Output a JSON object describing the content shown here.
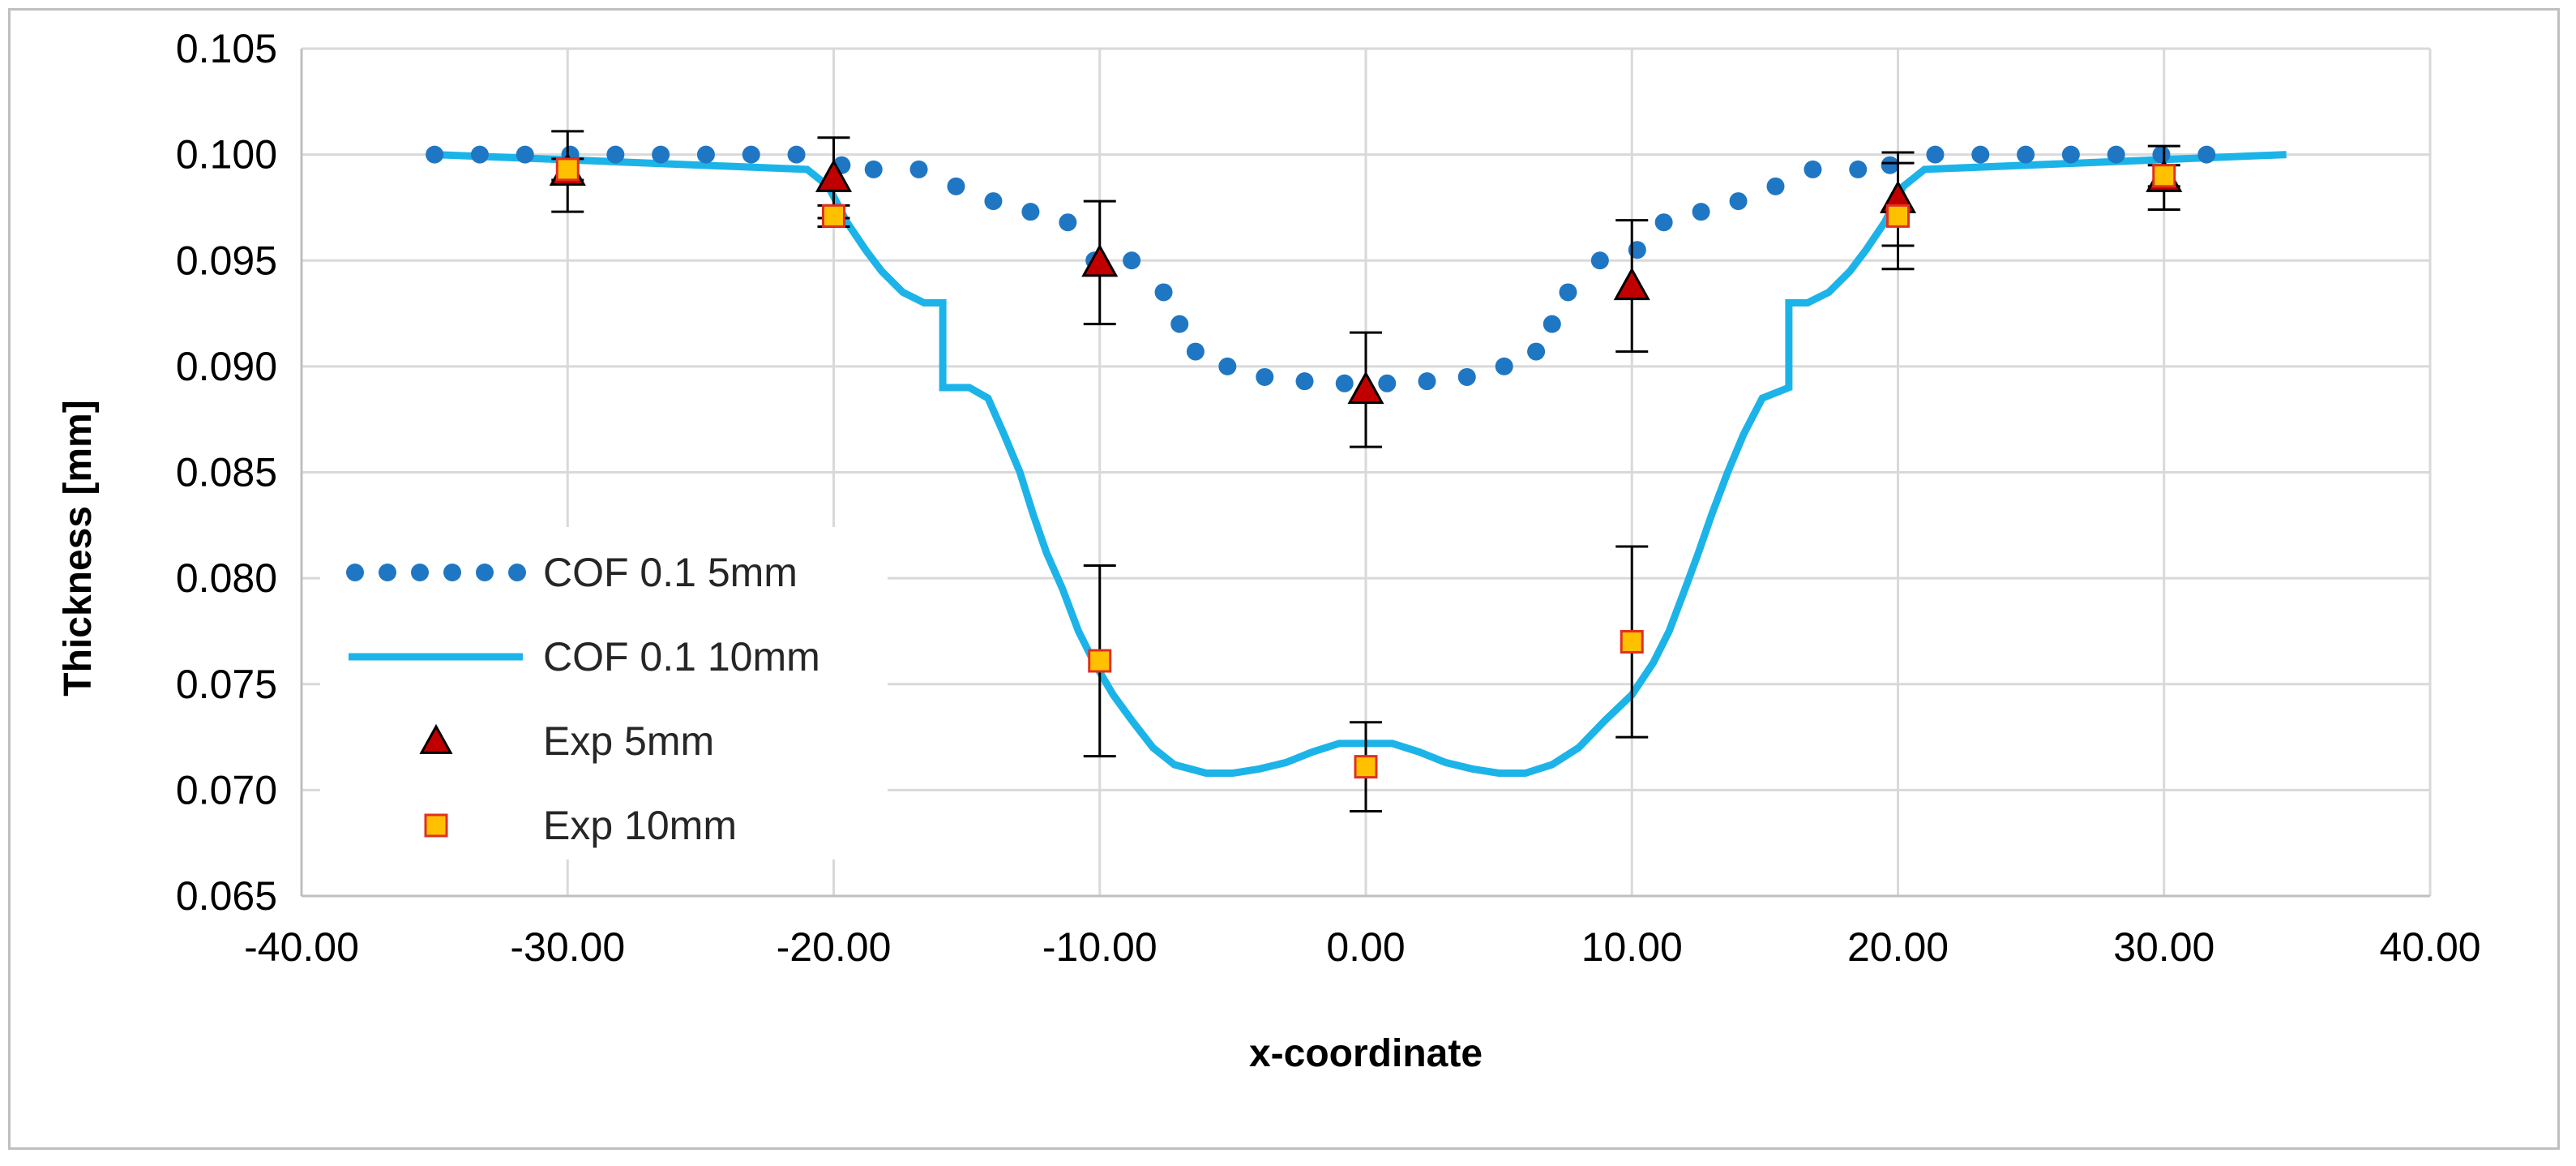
{
  "chart_data": {
    "type": "line",
    "title": "",
    "xlabel": "x-coordinate",
    "ylabel": "Thickness [mm]",
    "xlim": [
      -40,
      40
    ],
    "ylim": [
      0.065,
      0.105
    ],
    "xticks": [
      -40,
      -30,
      -20,
      -10,
      0,
      10,
      20,
      30,
      40
    ],
    "xtick_labels": [
      "-40.00",
      "-30.00",
      "-20.00",
      "-10.00",
      "0.00",
      "10.00",
      "20.00",
      "30.00",
      "40.00"
    ],
    "yticks": [
      0.065,
      0.07,
      0.075,
      0.08,
      0.085,
      0.09,
      0.095,
      0.1,
      0.105
    ],
    "ytick_labels": [
      "0.065",
      "0.070",
      "0.075",
      "0.080",
      "0.085",
      "0.090",
      "0.095",
      "0.100",
      "0.105"
    ],
    "grid": true,
    "legend_position": "left",
    "colors": {
      "cof_5mm": "#1f77c4",
      "cof_10mm": "#1cb4e8",
      "exp_5mm_fill": "#c00000",
      "exp_10mm_fill": "#ffc000",
      "exp_10mm_edge": "#e03020",
      "grid": "#d9d9d9",
      "axis": "#bfbfbf"
    },
    "series": [
      {
        "name": "COF 0.1 5mm",
        "style": "dotted",
        "x": [
          -35,
          -33.3,
          -31.6,
          -29.9,
          -28.2,
          -26.5,
          -24.8,
          -23.1,
          -21.4,
          -19.7,
          -18.5,
          -16.8,
          -15.4,
          -14,
          -12.6,
          -11.2,
          -10.2,
          -8.8,
          -7.6,
          -7,
          -6.4,
          -5.2,
          -3.8,
          -2.3,
          -0.8,
          0.8,
          2.3,
          3.8,
          5.2,
          6.4,
          7,
          7.6,
          8.8,
          10.2,
          11.2,
          12.6,
          14,
          15.4,
          16.8,
          18.5,
          19.7,
          21.4,
          23.1,
          24.8,
          26.5,
          28.2,
          29.9,
          31.6
        ],
        "y": [
          0.1,
          0.1,
          0.1,
          0.1,
          0.1,
          0.1,
          0.1,
          0.1,
          0.1,
          0.0995,
          0.0993,
          0.0993,
          0.0985,
          0.0978,
          0.0973,
          0.0968,
          0.095,
          0.095,
          0.0935,
          0.092,
          0.0907,
          0.09,
          0.0895,
          0.0893,
          0.0892,
          0.0892,
          0.0893,
          0.0895,
          0.09,
          0.0907,
          0.092,
          0.0935,
          0.095,
          0.0955,
          0.0968,
          0.0973,
          0.0978,
          0.0985,
          0.0993,
          0.0993,
          0.0995,
          0.1,
          0.1,
          0.1,
          0.1,
          0.1,
          0.1,
          0.1
        ]
      },
      {
        "name": "COF 0.1 10mm",
        "style": "solid",
        "x": [
          -35,
          -21,
          -20.2,
          -19.5,
          -18.8,
          -18.2,
          -17.4,
          -16.6,
          -15.9,
          -15.9,
          -14.9,
          -14.2,
          -13.6,
          -13,
          -12.5,
          -12,
          -11.4,
          -10.8,
          -10.2,
          -9.5,
          -8.8,
          -8,
          -7.2,
          -6,
          -5,
          -4,
          -3,
          -2,
          -1,
          0,
          1,
          2,
          3,
          4,
          5,
          6,
          7,
          8,
          9,
          10,
          10.8,
          11.4,
          12,
          12.5,
          13,
          13.6,
          14.2,
          14.9,
          15.9,
          15.9,
          16.6,
          17.4,
          18.2,
          18.8,
          19.5,
          20.2,
          21,
          34.6
        ],
        "y": [
          0.1,
          0.0993,
          0.0985,
          0.0968,
          0.0955,
          0.0945,
          0.0935,
          0.093,
          0.093,
          0.089,
          0.089,
          0.0885,
          0.0868,
          0.085,
          0.083,
          0.0812,
          0.0795,
          0.0775,
          0.076,
          0.0745,
          0.0733,
          0.072,
          0.0712,
          0.0708,
          0.0708,
          0.071,
          0.0713,
          0.0718,
          0.0722,
          0.0722,
          0.0722,
          0.0718,
          0.0713,
          0.071,
          0.0708,
          0.0708,
          0.0712,
          0.072,
          0.0733,
          0.0745,
          0.076,
          0.0775,
          0.0795,
          0.0812,
          0.083,
          0.085,
          0.0868,
          0.0885,
          0.089,
          0.093,
          0.093,
          0.0935,
          0.0945,
          0.0955,
          0.0968,
          0.0985,
          0.0993,
          0.1
        ]
      },
      {
        "name": "Exp 5mm",
        "style": "marker-triangle",
        "x": [
          -30,
          -20,
          -10,
          0,
          10,
          20,
          30
        ],
        "y": [
          0.0992,
          0.0989,
          0.0949,
          0.0889,
          0.0938,
          0.0979,
          0.0989
        ],
        "error": [
          0.0019,
          0.0019,
          0.0029,
          0.0027,
          0.0031,
          0.0022,
          0.0015
        ]
      },
      {
        "name": "Exp 10mm",
        "style": "marker-square",
        "x": [
          -30,
          -20,
          -10,
          0,
          10,
          20,
          30
        ],
        "y": [
          0.0993,
          0.0971,
          0.0761,
          0.0711,
          0.077,
          0.0971,
          0.099
        ],
        "error": [
          0.0005,
          0.0005,
          0.0045,
          0.0021,
          0.0045,
          0.0025,
          0.0005
        ]
      }
    ]
  }
}
